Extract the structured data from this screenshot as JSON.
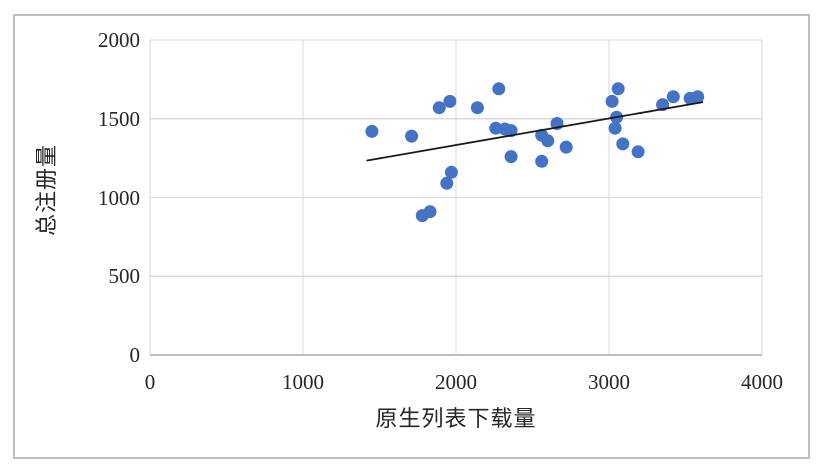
{
  "figure": {
    "background_color": "#FFFFFF",
    "border_color": "#BFBFBF"
  },
  "chart_data": {
    "type": "scatter",
    "title": "",
    "xlabel": "原生列表下载量",
    "ylabel": "总注册量",
    "xlim": [
      0,
      4000
    ],
    "ylim": [
      0,
      2000
    ],
    "xticks": [
      0,
      1000,
      2000,
      3000,
      4000
    ],
    "yticks": [
      0,
      500,
      1000,
      1500,
      2000
    ],
    "grid": true,
    "legend": "none",
    "marker_color": "#4472C4",
    "marker_radius": 6.5,
    "gridline_color": "#D9D9D9",
    "axis_line_color": "#BFBFBF",
    "text_color": "#262626",
    "series": [
      {
        "points": [
          [
            1450,
            1420
          ],
          [
            1710,
            1390
          ],
          [
            1780,
            885
          ],
          [
            1830,
            910
          ],
          [
            1890,
            1570
          ],
          [
            1940,
            1090
          ],
          [
            1960,
            1610
          ],
          [
            1970,
            1160
          ],
          [
            2140,
            1570
          ],
          [
            2260,
            1440
          ],
          [
            2280,
            1690
          ],
          [
            2320,
            1435
          ],
          [
            2360,
            1425
          ],
          [
            2360,
            1260
          ],
          [
            2560,
            1395
          ],
          [
            2560,
            1230
          ],
          [
            2600,
            1360
          ],
          [
            2660,
            1470
          ],
          [
            2720,
            1320
          ],
          [
            3020,
            1610
          ],
          [
            3040,
            1440
          ],
          [
            3050,
            1510
          ],
          [
            3060,
            1690
          ],
          [
            3090,
            1340
          ],
          [
            3190,
            1290
          ],
          [
            3350,
            1590
          ],
          [
            3420,
            1640
          ],
          [
            3530,
            1630
          ],
          [
            3580,
            1640
          ]
        ]
      }
    ],
    "trendline": {
      "type": "linear",
      "color": "#1A1A1A",
      "x_start": 1420,
      "y_start": 1235,
      "x_end": 3610,
      "y_end": 1605
    }
  }
}
